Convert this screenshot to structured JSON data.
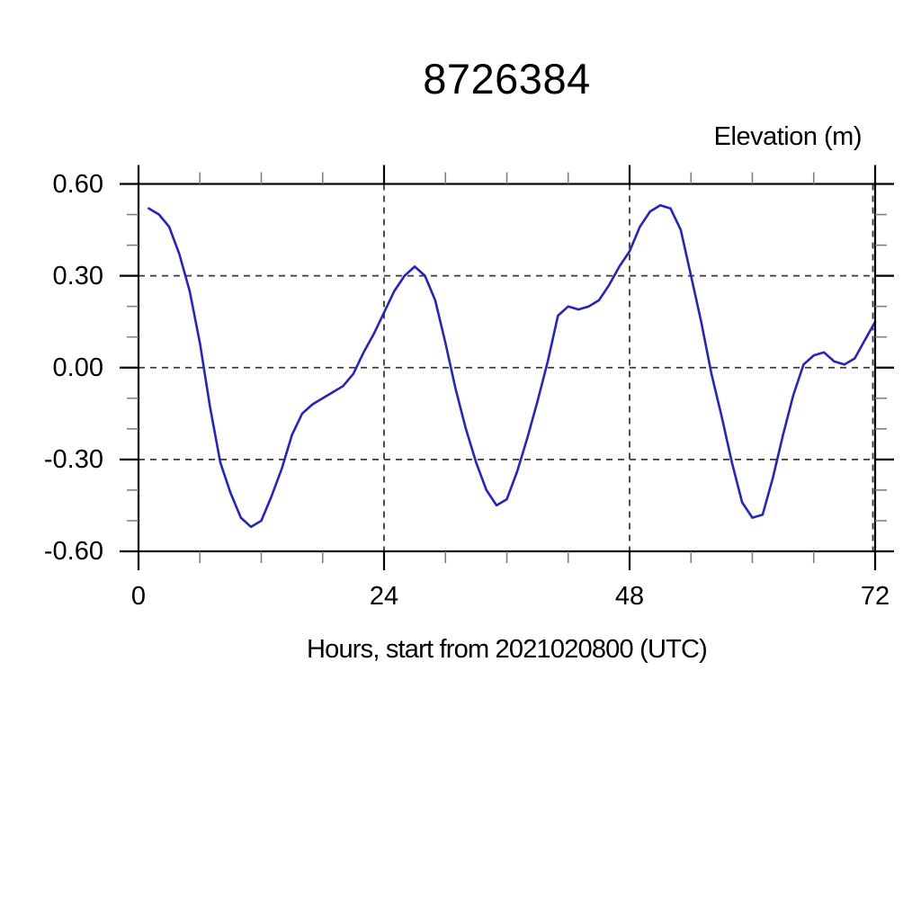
{
  "title": "8726384",
  "chart_data": {
    "type": "line",
    "title": "8726384",
    "xlabel": "Hours, start from 2021020800 (UTC)",
    "ylabel": "Elevation (m)",
    "xlim": [
      0,
      72
    ],
    "ylim": [
      -0.6,
      0.6
    ],
    "x_major_ticks": [
      0,
      24,
      48,
      72
    ],
    "x_tick_labels": [
      "0",
      "24",
      "48",
      "72"
    ],
    "x_minor_ticks": [
      6,
      12,
      18,
      30,
      36,
      42,
      54,
      60,
      66
    ],
    "y_major_ticks": [
      0.6,
      0.3,
      0.0,
      -0.3,
      -0.6
    ],
    "y_tick_labels": [
      "0.60",
      "0.30",
      "0.00",
      "-0.30",
      "-0.60"
    ],
    "y_minor_ticks": [
      0.5,
      0.4,
      0.2,
      0.1,
      -0.1,
      -0.2,
      -0.4,
      -0.5
    ],
    "grid": "dashed at major ticks",
    "legend": "none",
    "line_color": "#2323cd",
    "frame_color": "#000000",
    "series": [
      {
        "name": "elevation",
        "color": "#2323cd",
        "x": [
          1,
          2,
          3,
          4,
          5,
          6,
          7,
          8,
          9,
          10,
          11,
          12,
          13,
          14,
          15,
          16,
          17,
          18,
          19,
          20,
          21,
          22,
          23,
          24,
          25,
          26,
          27,
          28,
          29,
          30,
          31,
          32,
          33,
          34,
          35,
          36,
          37,
          38,
          39,
          40,
          41,
          42,
          43,
          44,
          45,
          46,
          47,
          48,
          49,
          50,
          51,
          52,
          53,
          54,
          55,
          56,
          57,
          58,
          59,
          60,
          61,
          62,
          63,
          64,
          65,
          66,
          67,
          68,
          69,
          70,
          71,
          72
        ],
        "y": [
          0.52,
          0.5,
          0.46,
          0.37,
          0.25,
          0.08,
          -0.13,
          -0.31,
          -0.41,
          -0.49,
          -0.52,
          -0.5,
          -0.42,
          -0.33,
          -0.22,
          -0.15,
          -0.12,
          -0.1,
          -0.08,
          -0.06,
          -0.02,
          0.05,
          0.11,
          0.18,
          0.25,
          0.3,
          0.33,
          0.3,
          0.22,
          0.08,
          -0.07,
          -0.2,
          -0.31,
          -0.4,
          -0.45,
          -0.43,
          -0.34,
          -0.23,
          -0.11,
          0.02,
          0.17,
          0.2,
          0.19,
          0.2,
          0.22,
          0.27,
          0.33,
          0.38,
          0.46,
          0.51,
          0.53,
          0.52,
          0.45,
          0.3,
          0.15,
          -0.02,
          -0.16,
          -0.31,
          -0.44,
          -0.49,
          -0.48,
          -0.36,
          -0.22,
          -0.09,
          0.01,
          0.04,
          0.05,
          0.02,
          0.01,
          0.03,
          0.09,
          0.15
        ]
      }
    ]
  }
}
